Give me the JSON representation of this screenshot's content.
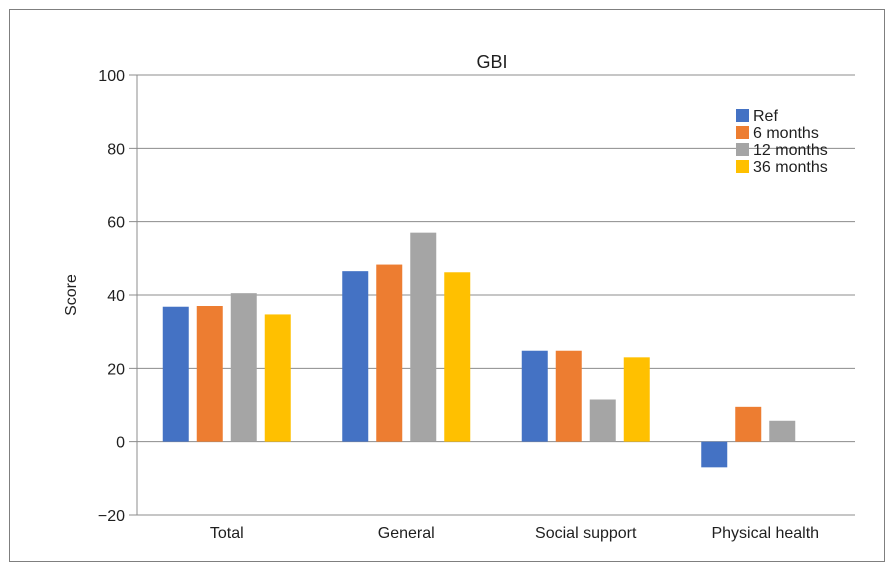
{
  "chart_data": {
    "type": "bar",
    "title": "GBI",
    "xlabel": "",
    "ylabel": "Score",
    "ylim": [
      -20,
      100
    ],
    "yticks": [
      "−20",
      "0",
      "20",
      "40",
      "60",
      "80",
      "100"
    ],
    "ytick_values": [
      -20,
      0,
      20,
      40,
      60,
      80,
      100
    ],
    "grid": true,
    "legend_position": "top-right",
    "categories": [
      "Total",
      "General",
      "Social support",
      "Physical health"
    ],
    "series": [
      {
        "name": "Ref",
        "color": "#4472c4",
        "values": [
          36.8,
          46.5,
          24.8,
          -7.0
        ]
      },
      {
        "name": "6 months",
        "color": "#ed7d31",
        "values": [
          37.0,
          48.3,
          24.8,
          9.5
        ]
      },
      {
        "name": "12 months",
        "color": "#a5a5a5",
        "values": [
          40.5,
          57.0,
          11.5,
          5.7
        ]
      },
      {
        "name": "36 months",
        "color": "#ffc000",
        "values": [
          34.7,
          46.2,
          23.0,
          null
        ]
      }
    ]
  }
}
